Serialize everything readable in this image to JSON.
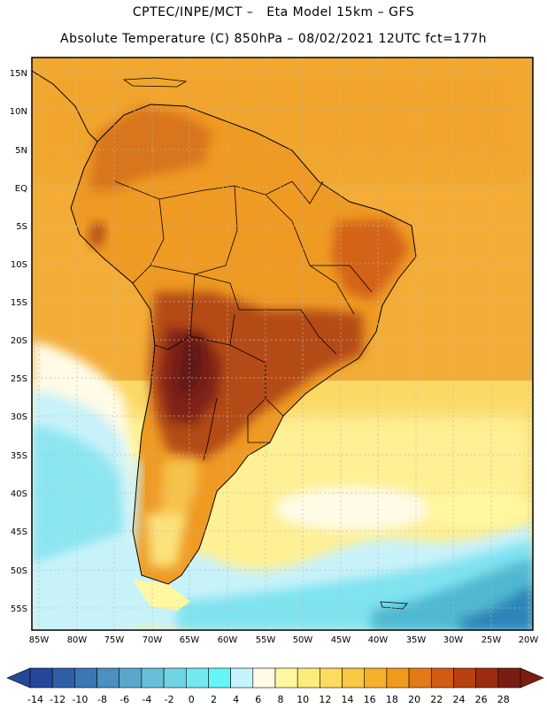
{
  "header": {
    "line1": "CPTEC/INPE/MCT –   Eta Model 15km – GFS",
    "line2": "Absolute Temperature (C) 850hPa – 08/02/2021 12UTC fct=177h"
  },
  "map": {
    "lat_labels": [
      "15N",
      "10N",
      "5N",
      "EQ",
      "5S",
      "10S",
      "15S",
      "20S",
      "25S",
      "30S",
      "35S",
      "40S",
      "45S",
      "50S",
      "55S"
    ],
    "lon_labels": [
      "85W",
      "80W",
      "75W",
      "70W",
      "65W",
      "60W",
      "55W",
      "50W",
      "45W",
      "40W",
      "35W",
      "30W",
      "25W",
      "20W"
    ],
    "colors": {
      "ocean_warm": "#f4b03c",
      "land_hot": "#a23a10",
      "land_hottest": "#6e1a18",
      "cold": "#7fe3f0",
      "coldest": "#2e83b8"
    }
  },
  "colorbar": {
    "ticks": [
      "-14",
      "-12",
      "-10",
      "-8",
      "-6",
      "-4",
      "-2",
      "0",
      "2",
      "4",
      "6",
      "8",
      "10",
      "12",
      "14",
      "16",
      "18",
      "20",
      "22",
      "24",
      "26",
      "28"
    ],
    "colors": [
      "#24479a",
      "#2f5fa6",
      "#3a77b4",
      "#4a90c0",
      "#58a8cc",
      "#66c0d8",
      "#6fd4e4",
      "#73e8f0",
      "#66f5f7",
      "#c6f3fb",
      "#fffbe6",
      "#fff8a0",
      "#fdeb7c",
      "#fbdc5e",
      "#f8c843",
      "#f5b12a",
      "#f09a1c",
      "#e47a15",
      "#d25c12",
      "#b8410f",
      "#9b2c10",
      "#7a1c12"
    ]
  }
}
